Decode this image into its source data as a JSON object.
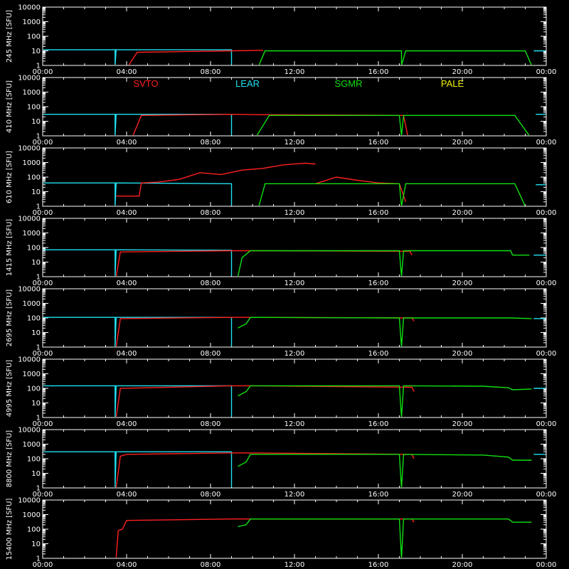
{
  "chart_data": {
    "type": "line",
    "x_ticks": [
      "00:00",
      "04:00",
      "08:00",
      "12:00",
      "16:00",
      "20:00",
      "00:00"
    ],
    "y_ticks": [
      "1",
      "10",
      "100",
      "1000",
      "10000"
    ],
    "y_scale": "log",
    "ylim": [
      1,
      10000
    ],
    "xlim_hours": [
      0,
      24
    ],
    "grid": false,
    "legend": {
      "placement": "top-of-second-panel",
      "entries": [
        {
          "name": "SVTO",
          "color": "#ff2020"
        },
        {
          "name": "LEAR",
          "color": "#20e0f0"
        },
        {
          "name": "SGMR",
          "color": "#10e010"
        },
        {
          "name": "PALE",
          "color": "#f0f000"
        }
      ]
    },
    "panels": [
      {
        "ylabel": "245 MHz [SFU]",
        "series": [
          {
            "name": "LEAR",
            "segments": [
              [
                [
                  0,
                  12
                ],
                [
                  3.45,
                  12
                ],
                [
                  3.45,
                  1
                ],
                [
                  3.5,
                  12
                ],
                [
                  9,
                  12
                ],
                [
                  9,
                  1
                ]
              ],
              [
                [
                  23.4,
                  10
                ],
                [
                  24,
                  10
                ]
              ]
            ]
          },
          {
            "name": "SVTO",
            "segments": [
              [
                [
                  4.1,
                  1
                ],
                [
                  4.5,
                  8
                ],
                [
                  9,
                  10
                ],
                [
                  10.5,
                  11
                ]
              ]
            ]
          },
          {
            "name": "SGMR",
            "segments": [
              [
                [
                  10.3,
                  1
                ],
                [
                  10.6,
                  10
                ],
                [
                  17.1,
                  10
                ],
                [
                  17.1,
                  1
                ],
                [
                  17.3,
                  10
                ],
                [
                  23,
                  10
                ],
                [
                  23.3,
                  1
                ]
              ]
            ]
          }
        ]
      },
      {
        "ylabel": "410 MHz [SFU]",
        "series": [
          {
            "name": "LEAR",
            "segments": [
              [
                [
                  0,
                  30
                ],
                [
                  3.45,
                  30
                ],
                [
                  3.45,
                  1
                ],
                [
                  3.5,
                  30
                ],
                [
                  9,
                  30
                ],
                [
                  9,
                  1
                ]
              ],
              [
                [
                  23.5,
                  30
                ],
                [
                  24,
                  30
                ]
              ]
            ]
          },
          {
            "name": "SVTO",
            "segments": [
              [
                [
                  4.3,
                  1
                ],
                [
                  4.7,
                  25
                ],
                [
                  9,
                  30
                ],
                [
                  10.5,
                  28
                ],
                [
                  17.2,
                  25
                ],
                [
                  17.4,
                  1
                ]
              ]
            ]
          },
          {
            "name": "SGMR",
            "segments": [
              [
                [
                  10.2,
                  1
                ],
                [
                  10.8,
                  25
                ],
                [
                  17,
                  25
                ],
                [
                  17.1,
                  1
                ],
                [
                  17.2,
                  25
                ],
                [
                  22.5,
                  25
                ],
                [
                  23.2,
                  1
                ]
              ]
            ]
          }
        ]
      },
      {
        "ylabel": "610 MHz [SFU]",
        "series": [
          {
            "name": "LEAR",
            "segments": [
              [
                [
                  0,
                  40
                ],
                [
                  3.45,
                  40
                ],
                [
                  3.45,
                  1
                ],
                [
                  3.5,
                  40
                ],
                [
                  9,
                  35
                ],
                [
                  9,
                  1
                ]
              ],
              [
                [
                  23.5,
                  30
                ],
                [
                  24,
                  30
                ]
              ]
            ]
          },
          {
            "name": "SVTO",
            "segments": [
              [
                [
                  3.5,
                  5
                ],
                [
                  4.6,
                  5
                ],
                [
                  4.7,
                  40
                ],
                [
                  5.5,
                  45
                ],
                [
                  6.5,
                  70
                ],
                [
                  7.5,
                  200
                ],
                [
                  8.5,
                  150
                ],
                [
                  9.5,
                  300
                ],
                [
                  10.5,
                  400
                ],
                [
                  11.5,
                  700
                ],
                [
                  12.5,
                  900
                ],
                [
                  13,
                  800
                ]
              ],
              [
                [
                  13,
                  35
                ],
                [
                  14,
                  100
                ],
                [
                  15,
                  60
                ],
                [
                  16,
                  40
                ],
                [
                  17,
                  35
                ],
                [
                  17.3,
                  2
                ]
              ]
            ]
          },
          {
            "name": "SGMR",
            "segments": [
              [
                [
                  10.3,
                  1
                ],
                [
                  10.6,
                  35
                ],
                [
                  17,
                  35
                ],
                [
                  17.1,
                  1
                ],
                [
                  17.3,
                  35
                ],
                [
                  22.5,
                  35
                ],
                [
                  23,
                  1
                ]
              ]
            ]
          }
        ]
      },
      {
        "ylabel": "1415 MHz [SFU]",
        "series": [
          {
            "name": "LEAR",
            "segments": [
              [
                [
                  0,
                  70
                ],
                [
                  3.45,
                  70
                ],
                [
                  3.45,
                  1
                ],
                [
                  3.5,
                  70
                ],
                [
                  9,
                  65
                ],
                [
                  9,
                  1
                ]
              ],
              [
                [
                  23.4,
                  30
                ],
                [
                  24,
                  30
                ]
              ]
            ]
          },
          {
            "name": "SVTO",
            "segments": [
              [
                [
                  3.5,
                  1
                ],
                [
                  3.7,
                  50
                ],
                [
                  9,
                  60
                ],
                [
                  10,
                  60
                ],
                [
                  17.5,
                  55
                ],
                [
                  17.6,
                  30
                ]
              ]
            ]
          },
          {
            "name": "SGMR",
            "segments": [
              [
                [
                  9.3,
                  1
                ],
                [
                  9.5,
                  20
                ],
                [
                  9.9,
                  60
                ],
                [
                  17,
                  60
                ],
                [
                  17.1,
                  1
                ],
                [
                  17.2,
                  60
                ],
                [
                  22.3,
                  60
                ],
                [
                  22.4,
                  30
                ],
                [
                  23.2,
                  30
                ]
              ]
            ]
          }
        ]
      },
      {
        "ylabel": "2695 MHz [SFU]",
        "series": [
          {
            "name": "LEAR",
            "segments": [
              [
                [
                  0,
                  110
                ],
                [
                  3.45,
                  110
                ],
                [
                  3.45,
                  1
                ],
                [
                  3.5,
                  110
                ],
                [
                  9,
                  110
                ],
                [
                  9,
                  1
                ]
              ],
              [
                [
                  23.4,
                  90
                ],
                [
                  24,
                  90
                ]
              ]
            ]
          },
          {
            "name": "SVTO",
            "segments": [
              [
                [
                  3.5,
                  1
                ],
                [
                  3.7,
                  90
                ],
                [
                  9,
                  110
                ],
                [
                  10,
                  110
                ],
                [
                  17.6,
                  100
                ],
                [
                  17.7,
                  60
                ]
              ]
            ]
          },
          {
            "name": "SGMR",
            "segments": [
              [
                [
                  9.3,
                  20
                ],
                [
                  9.7,
                  40
                ],
                [
                  9.9,
                  110
                ],
                [
                  17,
                  100
                ],
                [
                  17.1,
                  1
                ],
                [
                  17.2,
                  100
                ],
                [
                  22.3,
                  100
                ],
                [
                  23.3,
                  90
                ]
              ]
            ]
          }
        ]
      },
      {
        "ylabel": "4995 MHz [SFU]",
        "series": [
          {
            "name": "LEAR",
            "segments": [
              [
                [
                  0,
                  150
                ],
                [
                  3.45,
                  150
                ],
                [
                  3.45,
                  1
                ],
                [
                  3.5,
                  150
                ],
                [
                  9,
                  150
                ],
                [
                  9,
                  1
                ]
              ],
              [
                [
                  23.4,
                  100
                ],
                [
                  24,
                  100
                ]
              ]
            ]
          },
          {
            "name": "SVTO",
            "segments": [
              [
                [
                  3.5,
                  1
                ],
                [
                  3.7,
                  100
                ],
                [
                  9,
                  150
                ],
                [
                  10,
                  150
                ],
                [
                  17.6,
                  120
                ],
                [
                  17.7,
                  60
                ]
              ]
            ]
          },
          {
            "name": "SGMR",
            "segments": [
              [
                [
                  9.3,
                  30
                ],
                [
                  9.7,
                  60
                ],
                [
                  9.9,
                  150
                ],
                [
                  17,
                  150
                ],
                [
                  17.1,
                  1
                ],
                [
                  17.2,
                  150
                ],
                [
                  21,
                  140
                ],
                [
                  22.2,
                  110
                ],
                [
                  22.4,
                  80
                ],
                [
                  23.3,
                  90
                ]
              ]
            ]
          }
        ]
      },
      {
        "ylabel": "8800 MHz [SFU]",
        "series": [
          {
            "name": "LEAR",
            "segments": [
              [
                [
                  0,
                  300
                ],
                [
                  3.45,
                  300
                ],
                [
                  3.45,
                  1
                ],
                [
                  3.5,
                  300
                ],
                [
                  9,
                  300
                ],
                [
                  9,
                  1
                ]
              ],
              [
                [
                  23.4,
                  200
                ],
                [
                  24,
                  200
                ]
              ]
            ]
          },
          {
            "name": "SVTO",
            "segments": [
              [
                [
                  3.5,
                  1
                ],
                [
                  3.7,
                  150
                ],
                [
                  4,
                  200
                ],
                [
                  9,
                  250
                ],
                [
                  10,
                  250
                ],
                [
                  17.6,
                  200
                ],
                [
                  17.7,
                  100
                ]
              ]
            ]
          },
          {
            "name": "SGMR",
            "segments": [
              [
                [
                  9.3,
                  30
                ],
                [
                  9.7,
                  60
                ],
                [
                  9.9,
                  200
                ],
                [
                  17,
                  200
                ],
                [
                  17.1,
                  1
                ],
                [
                  17.2,
                  200
                ],
                [
                  21,
                  180
                ],
                [
                  22.2,
                  130
                ],
                [
                  22.4,
                  80
                ],
                [
                  23.3,
                  80
                ]
              ]
            ]
          }
        ]
      },
      {
        "ylabel": "15400 MHz [SFU]",
        "series": [
          {
            "name": "SVTO",
            "segments": [
              [
                [
                  3.5,
                  1
                ],
                [
                  3.6,
                  80
                ],
                [
                  3.8,
                  100
                ],
                [
                  4,
                  400
                ],
                [
                  9,
                  500
                ],
                [
                  10,
                  500
                ],
                [
                  17.6,
                  500
                ],
                [
                  17.7,
                  300
                ]
              ]
            ]
          },
          {
            "name": "SGMR",
            "segments": [
              [
                [
                  9.3,
                  150
                ],
                [
                  9.7,
                  200
                ],
                [
                  9.9,
                  500
                ],
                [
                  17,
                  500
                ],
                [
                  17.1,
                  1
                ],
                [
                  17.2,
                  500
                ],
                [
                  22.2,
                  500
                ],
                [
                  22.4,
                  300
                ],
                [
                  23.3,
                  300
                ]
              ]
            ]
          }
        ]
      }
    ]
  }
}
